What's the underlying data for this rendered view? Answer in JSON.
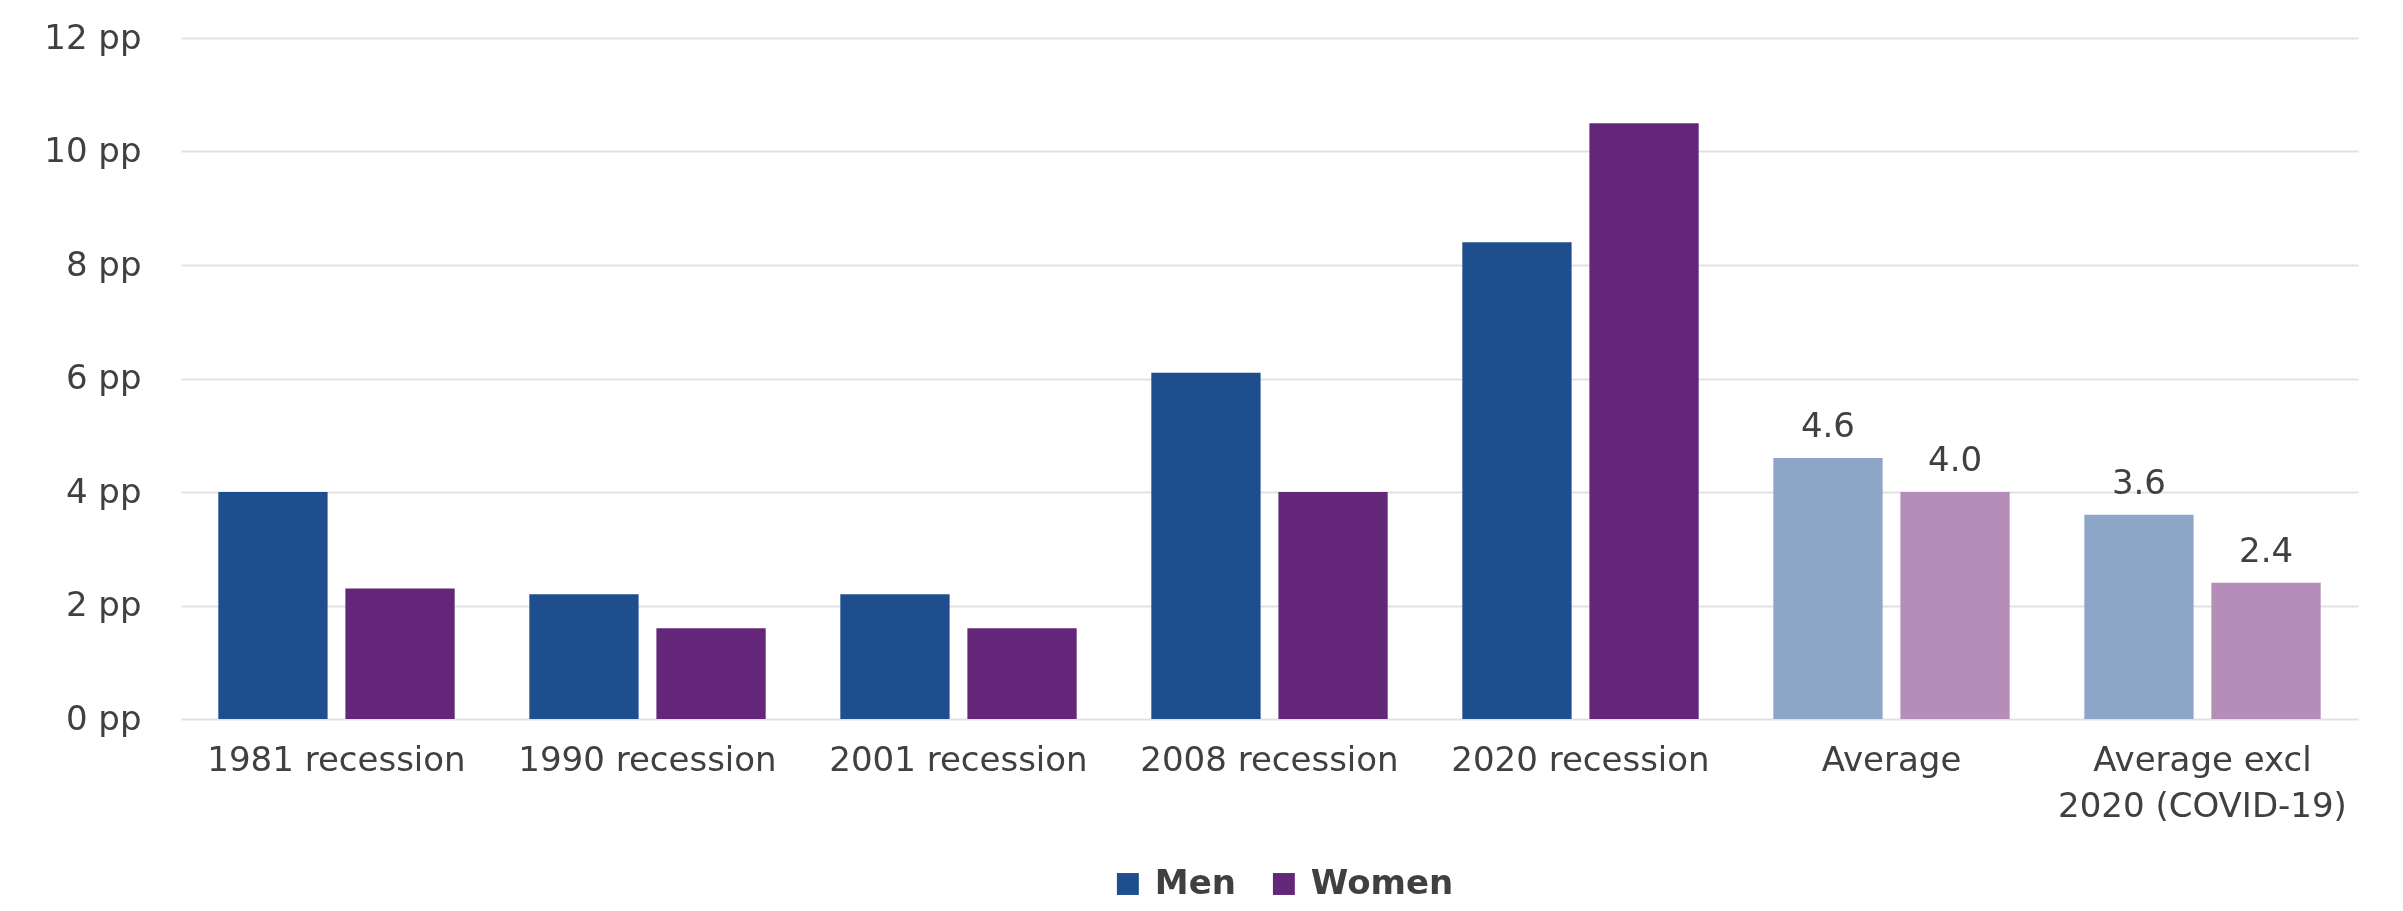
{
  "chart_data": {
    "type": "bar",
    "categories": [
      "1981 recession",
      "1990 recession",
      "2001 recession",
      "2008 recession",
      "2020 recession",
      "Average",
      "Average excl 2020 (COVID-19)"
    ],
    "series": [
      {
        "name": "Men",
        "color": "#1f4e8f",
        "colors": [
          "#1f4e8f",
          "#1f4e8f",
          "#1f4e8f",
          "#1f4e8f",
          "#1f4e8f",
          "#8da6c8",
          "#8da6c8"
        ],
        "values": [
          4.0,
          2.2,
          2.2,
          6.1,
          8.4,
          4.6,
          3.6
        ],
        "value_labels": [
          null,
          null,
          null,
          null,
          null,
          "4.6",
          "3.6"
        ]
      },
      {
        "name": "Women",
        "color": "#632678",
        "colors": [
          "#632678",
          "#632678",
          "#632678",
          "#632678",
          "#632678",
          "#b48db9",
          "#b48db9"
        ],
        "values": [
          2.3,
          1.6,
          1.6,
          4.0,
          10.5,
          4.0,
          2.4
        ],
        "value_labels": [
          null,
          null,
          null,
          null,
          null,
          "4.0",
          "2.4"
        ]
      }
    ],
    "ylim": [
      0,
      12
    ],
    "yticks": [
      {
        "value": 0,
        "label": "0 pp"
      },
      {
        "value": 2,
        "label": "2 pp"
      },
      {
        "value": 4,
        "label": "4 pp"
      },
      {
        "value": 6,
        "label": "6 pp"
      },
      {
        "value": 8,
        "label": "8 pp"
      },
      {
        "value": 10,
        "label": "10 pp"
      },
      {
        "value": 12,
        "label": "12 pp"
      }
    ],
    "grid": "y",
    "legend": "bottom"
  }
}
